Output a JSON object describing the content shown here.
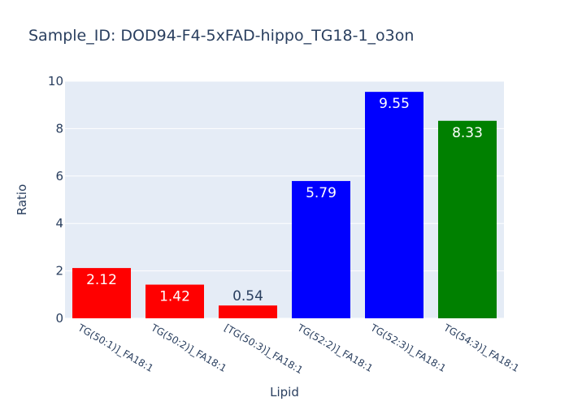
{
  "chart_data": {
    "type": "bar",
    "title": "Sample_ID: DOD94-F4-5xFAD-hippo_TG18-1_o3on",
    "xlabel": "Lipid",
    "ylabel": "Ratio",
    "ylim": [
      0,
      10
    ],
    "yticks": [
      "0",
      "2",
      "4",
      "6",
      "8",
      "10"
    ],
    "grid": true,
    "categories": [
      "TG(50:1)]_FA18:1",
      "TG(50:2)]_FA18:1",
      "[TG(50:3)]_FA18:1",
      "TG(52:2)]_FA18:1",
      "TG(52:3)]_FA18:1",
      "TG(54:3)]_FA18:1"
    ],
    "values": [
      2.12,
      1.42,
      0.54,
      5.79,
      9.55,
      8.33
    ],
    "labels": [
      "2.12",
      "1.42",
      "0.54",
      "5.79",
      "9.55",
      "8.33"
    ],
    "colors": [
      "#ff0000",
      "#ff0000",
      "#ff0000",
      "#0000ff",
      "#0000ff",
      "#008000"
    ],
    "plot_bg": "#e5ecf6",
    "grid_color": "#ffffff",
    "text_color": "#2a3f5f"
  }
}
